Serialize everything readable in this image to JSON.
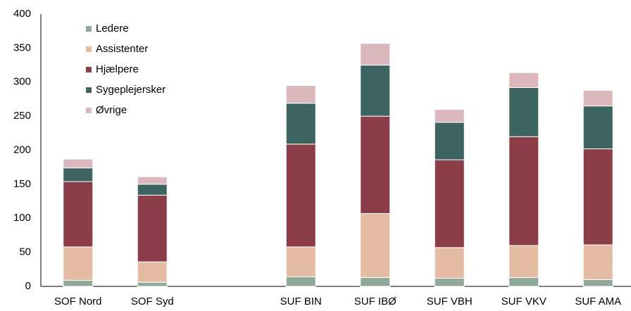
{
  "chart_data": {
    "type": "stacked_bar",
    "categories": [
      "SOF Nord",
      "SOF Syd",
      null,
      "SUF BIN",
      "SUF IBØ",
      "SUF VBH",
      "SUF VKV",
      "SUF AMA"
    ],
    "series": [
      {
        "name": "Ledere",
        "color": "#8fa89a",
        "values": [
          9,
          6,
          null,
          14,
          13,
          12,
          13,
          10
        ]
      },
      {
        "name": "Assistenter",
        "color": "#e3bca3",
        "values": [
          49,
          30,
          null,
          44,
          94,
          45,
          47,
          51
        ]
      },
      {
        "name": "Hjælpere",
        "color": "#8b3e47",
        "values": [
          96,
          98,
          null,
          151,
          143,
          129,
          160,
          141
        ]
      },
      {
        "name": "Sygeplejersker",
        "color": "#3d6360",
        "values": [
          20,
          16,
          null,
          60,
          75,
          55,
          72,
          63
        ]
      },
      {
        "name": "Øvrige",
        "color": "#dbb8be",
        "values": [
          13,
          11,
          null,
          26,
          32,
          19,
          22,
          23
        ]
      }
    ],
    "ylim": [
      0,
      400
    ],
    "yticks": [
      0,
      50,
      100,
      150,
      200,
      250,
      300,
      350,
      400
    ],
    "grid": false,
    "legend": "top-left"
  }
}
